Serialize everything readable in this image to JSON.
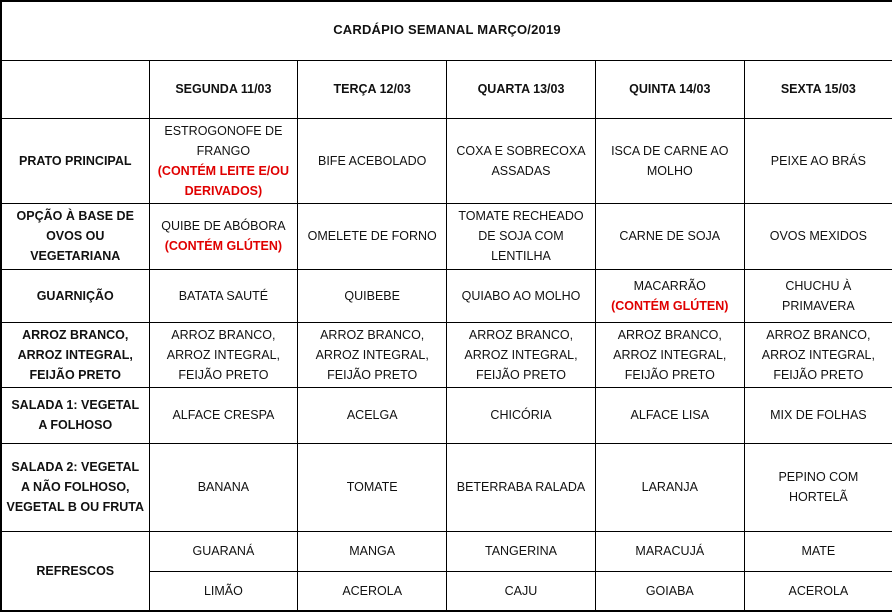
{
  "title": "CARDÁPIO SEMANAL MARÇO/2019",
  "colors": {
    "allergen_red": "#e00000",
    "border_black": "#000000"
  },
  "columns": [
    "",
    "SEGUNDA 11/03",
    "TERÇA 12/03",
    "QUARTA 13/03",
    "QUINTA 14/03",
    "SEXTA 15/03"
  ],
  "rows": [
    {
      "label": "PRATO PRINCIPAL",
      "cells": [
        {
          "text": "ESTROGONOFE DE FRANGO",
          "allergen": "(CONTÉM LEITE E/OU DERIVADOS)"
        },
        {
          "text": "BIFE ACEBOLADO"
        },
        {
          "text": "COXA E SOBRECOXA ASSADAS"
        },
        {
          "text": "ISCA DE CARNE AO MOLHO"
        },
        {
          "text": "PEIXE AO BRÁS"
        }
      ]
    },
    {
      "label": "OPÇÃO À BASE DE OVOS OU VEGETARIANA",
      "cells": [
        {
          "text": "QUIBE DE ABÓBORA",
          "allergen": "(CONTÉM GLÚTEN)"
        },
        {
          "text": "OMELETE DE FORNO"
        },
        {
          "text": "TOMATE RECHEADO DE SOJA COM LENTILHA"
        },
        {
          "text": "CARNE DE SOJA"
        },
        {
          "text": "OVOS MEXIDOS"
        }
      ]
    },
    {
      "label": "GUARNIÇÃO",
      "cells": [
        {
          "text": "BATATA SAUTÉ"
        },
        {
          "text": "QUIBEBE"
        },
        {
          "text": "QUIABO AO MOLHO"
        },
        {
          "text": "MACARRÃO",
          "allergen": "(CONTÉM GLÚTEN)"
        },
        {
          "text": "CHUCHU À PRIMAVERA"
        }
      ]
    },
    {
      "label": "ARROZ BRANCO, ARROZ INTEGRAL, FEIJÃO PRETO",
      "cells": [
        {
          "text": "ARROZ BRANCO, ARROZ INTEGRAL, FEIJÃO PRETO"
        },
        {
          "text": "ARROZ BRANCO, ARROZ INTEGRAL, FEIJÃO PRETO"
        },
        {
          "text": "ARROZ BRANCO, ARROZ INTEGRAL, FEIJÃO PRETO"
        },
        {
          "text": "ARROZ BRANCO, ARROZ INTEGRAL, FEIJÃO PRETO"
        },
        {
          "text": "ARROZ BRANCO, ARROZ INTEGRAL, FEIJÃO PRETO"
        }
      ]
    },
    {
      "label": "SALADA 1: VEGETAL A FOLHOSO",
      "cells": [
        {
          "text": "ALFACE CRESPA"
        },
        {
          "text": "ACELGA"
        },
        {
          "text": "CHICÓRIA"
        },
        {
          "text": "ALFACE LISA"
        },
        {
          "text": "MIX DE FOLHAS"
        }
      ]
    },
    {
      "label": "SALADA 2: VEGETAL A NÃO FOLHOSO, VEGETAL B OU FRUTA",
      "cells": [
        {
          "text": "BANANA"
        },
        {
          "text": "TOMATE"
        },
        {
          "text": "BETERRABA RALADA"
        },
        {
          "text": "LARANJA"
        },
        {
          "text": "PEPINO COM HORTELÃ"
        }
      ]
    }
  ],
  "refrescos": {
    "label": "REFRESCOS",
    "row1": [
      "GUARANÁ",
      "MANGA",
      "TANGERINA",
      "MARACUJÁ",
      "MATE"
    ],
    "row2": [
      "LIMÃO",
      "ACEROLA",
      "CAJU",
      "GOIABA",
      "ACEROLA"
    ]
  }
}
